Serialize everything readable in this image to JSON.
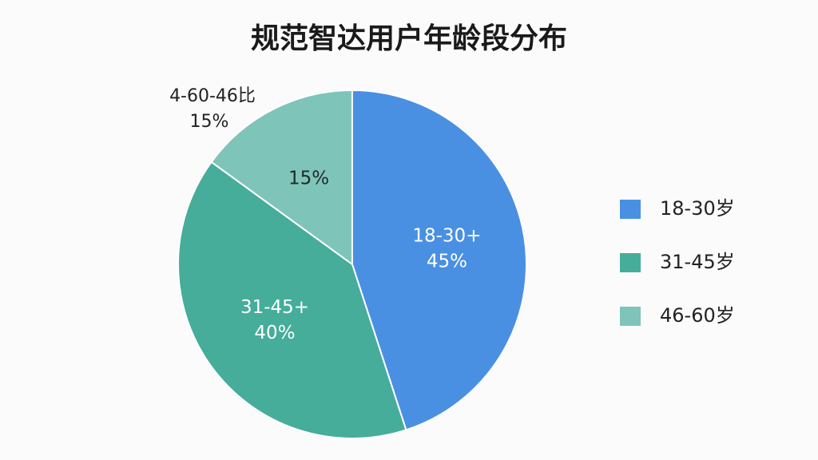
{
  "chart_data": {
    "type": "pie",
    "title": "规范智达用户年龄段分布",
    "categories": [
      "18-30岁",
      "31-45岁",
      "46-60岁"
    ],
    "values": [
      45,
      40,
      15
    ],
    "value_labels": [
      "45%",
      "40%",
      "15%"
    ],
    "slice_labels": [
      "18-30+",
      "31-45+",
      null
    ],
    "colors": [
      "#4a90e2",
      "#45ad9a",
      "#7fc4b9"
    ],
    "annotation": {
      "text": "4-60-46比",
      "value_label": "15%"
    },
    "legend": "right"
  }
}
